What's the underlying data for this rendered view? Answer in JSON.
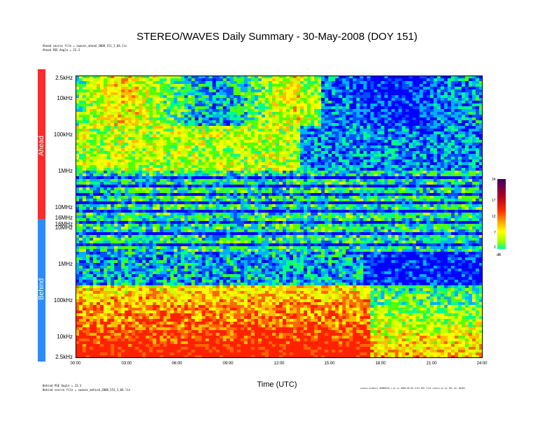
{
  "chart_data": {
    "type": "heatmap",
    "title": "STEREO/WAVES Daily Summary - 30-May-2008 (DOY 151)",
    "xlabel": "Time (UTC)",
    "x_ticks": [
      "00:00",
      "03:00",
      "06:00",
      "09:00",
      "12:00",
      "15:00",
      "18:00",
      "21:00",
      "24:00"
    ],
    "panels": [
      {
        "name": "Ahead",
        "y_ticks": [
          "2.5kHz",
          "10kHz",
          "100kHz",
          "1MHz",
          "10MHz",
          "16MHz"
        ],
        "header_lines": [
          "Ahead source file = swaves_ahead_2008_151_1_04.lin",
          "Ahead PSE Angle = 23.3"
        ]
      },
      {
        "name": "Behind",
        "y_ticks": [
          "16MHz",
          "10MHz",
          "1MHz",
          "100kHz",
          "10kHz",
          "2.5kHz"
        ],
        "footer_lines": [
          "Behind PSE Angle = 23.3",
          "Behind source file = swaves_behind_2008_151_1_04.lin"
        ]
      }
    ],
    "colorbar": {
      "ticks": [
        "24",
        "17",
        "12",
        "7",
        "2"
      ],
      "unit": "dB",
      "range": [
        2,
        24
      ]
    },
    "footer_right": "swaves_summary_20080530_v.ps on 2008-06-05 2:03 GMT from reduce.ps by JPL.dsc WAVES"
  },
  "colors": {
    "ahead": "#ff2a2a",
    "behind": "#2a8cff"
  }
}
